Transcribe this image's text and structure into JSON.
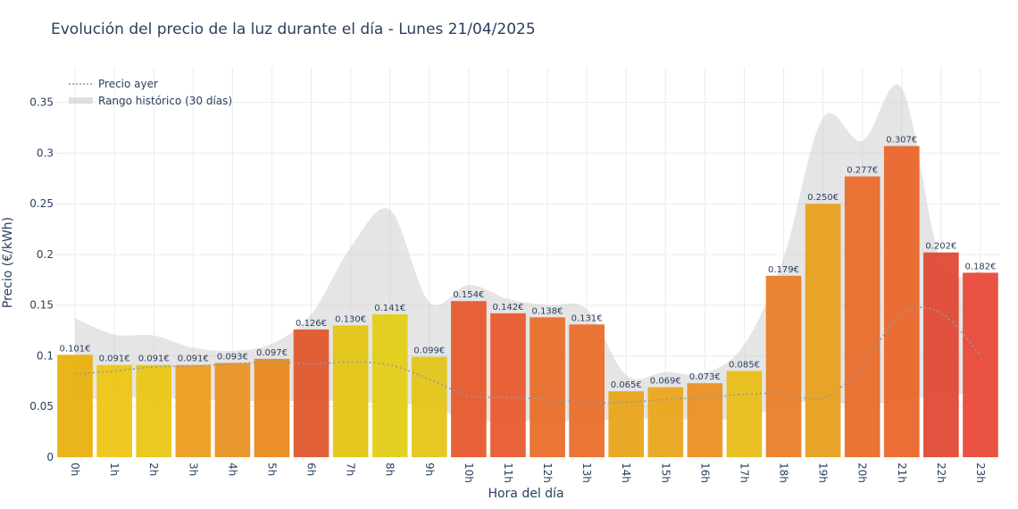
{
  "chart_data": {
    "type": "bar",
    "title": "Evolución del precio de la luz durante el día - Lunes 21/04/2025",
    "xlabel": "Hora del día",
    "ylabel": "Precio (€/kWh)",
    "ylim": [
      0,
      0.385
    ],
    "yticks": [
      0,
      0.05,
      0.1,
      0.15,
      0.2,
      0.25,
      0.3,
      0.35
    ],
    "ytick_labels": [
      "0",
      "0.05",
      "0.1",
      "0.15",
      "0.2",
      "0.25",
      "0.3",
      "0.35"
    ],
    "grid": true,
    "legend_position": "top-left",
    "categories": [
      "0h",
      "1h",
      "2h",
      "3h",
      "4h",
      "5h",
      "6h",
      "7h",
      "8h",
      "9h",
      "10h",
      "11h",
      "12h",
      "13h",
      "14h",
      "15h",
      "16h",
      "17h",
      "18h",
      "19h",
      "20h",
      "21h",
      "22h",
      "23h"
    ],
    "values": [
      0.101,
      0.091,
      0.091,
      0.091,
      0.093,
      0.097,
      0.126,
      0.13,
      0.141,
      0.099,
      0.154,
      0.142,
      0.138,
      0.131,
      0.065,
      0.069,
      0.073,
      0.085,
      0.179,
      0.25,
      0.277,
      0.307,
      0.202,
      0.182
    ],
    "value_labels": [
      "0.101€",
      "0.091€",
      "0.091€",
      "0.091€",
      "0.093€",
      "0.097€",
      "0.126€",
      "0.130€",
      "0.141€",
      "0.099€",
      "0.154€",
      "0.142€",
      "0.138€",
      "0.131€",
      "0.065€",
      "0.069€",
      "0.073€",
      "0.085€",
      "0.179€",
      "0.250€",
      "0.277€",
      "0.307€",
      "0.202€",
      "0.182€"
    ],
    "bar_colors": [
      "#e8b10f",
      "#eec514",
      "#ebc614",
      "#ec9e1f",
      "#ea9423",
      "#e9891f",
      "#e0572d",
      "#e4c513",
      "#e3cd17",
      "#e4c518",
      "#e75a2e",
      "#e85b2f",
      "#e96e2c",
      "#e96e2c",
      "#e9a51c",
      "#eaa61c",
      "#ea9122",
      "#e8be18",
      "#ea7e28",
      "#e8a01e",
      "#e96c2a",
      "#e9672b",
      "#e04a35",
      "#e94a3a"
    ],
    "series": [
      {
        "name": "Precio ayer",
        "style": "dotted",
        "color": "#999999",
        "values": [
          0.082,
          0.085,
          0.089,
          0.09,
          0.092,
          0.094,
          0.092,
          0.094,
          0.091,
          0.077,
          0.061,
          0.059,
          0.057,
          0.054,
          0.054,
          0.057,
          0.059,
          0.062,
          0.063,
          0.058,
          0.09,
          0.142,
          0.142,
          0.101
        ]
      },
      {
        "name": "Rango histórico (30 días)",
        "style": "band",
        "color": "#cccccc",
        "upper": [
          0.137,
          0.121,
          0.12,
          0.108,
          0.105,
          0.112,
          0.141,
          0.207,
          0.244,
          0.153,
          0.17,
          0.156,
          0.15,
          0.146,
          0.081,
          0.084,
          0.083,
          0.111,
          0.197,
          0.335,
          0.312,
          0.364,
          0.193,
          0.184
        ],
        "lower": [
          0.057,
          0.058,
          0.059,
          0.057,
          0.056,
          0.055,
          0.056,
          0.055,
          0.053,
          0.05,
          0.037,
          0.036,
          0.036,
          0.036,
          0.038,
          0.038,
          0.037,
          0.039,
          0.051,
          0.056,
          0.05,
          0.057,
          0.06,
          0.065
        ]
      }
    ]
  },
  "colors": {
    "text": "#2a3f5f",
    "grid": "#ebebeb",
    "band": "#cccccc",
    "line": "#999999"
  }
}
